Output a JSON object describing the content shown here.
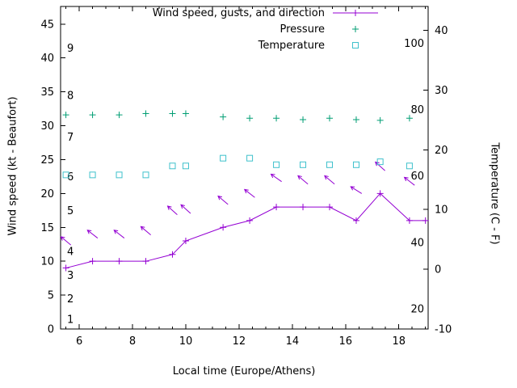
{
  "chart_data": {
    "type": "line",
    "title": "",
    "xlabel": "Local time (Europe/Athens)",
    "ylabel_left": "Wind speed (kt - Beaufort)",
    "ylabel_right": "Temperature (C - F)",
    "x_range": [
      5.3,
      19.1
    ],
    "x_ticks": [
      6,
      8,
      10,
      12,
      14,
      16,
      18
    ],
    "x_minor_step": 0.5,
    "left_axis": {
      "range": [
        0,
        47.6
      ],
      "ticks": [
        0,
        5,
        10,
        15,
        20,
        25,
        30,
        35,
        40,
        45
      ]
    },
    "right_axis": {
      "range": [
        -10,
        44
      ],
      "ticks": [
        -10,
        0,
        10,
        20,
        30,
        40
      ]
    },
    "beaufort_labels": [
      {
        "label": "1",
        "y": 1.4
      },
      {
        "label": "2",
        "y": 4.4
      },
      {
        "label": "3",
        "y": 7.9
      },
      {
        "label": "4",
        "y": 11.4
      },
      {
        "label": "5",
        "y": 17.4
      },
      {
        "label": "6",
        "y": 22.4
      },
      {
        "label": "7",
        "y": 28.3
      },
      {
        "label": "8",
        "y": 34.4
      },
      {
        "label": "9",
        "y": 41.4
      }
    ],
    "fahrenheit_labels": [
      {
        "label": "20",
        "f": 20
      },
      {
        "label": "40",
        "f": 40
      },
      {
        "label": "60",
        "f": 60
      },
      {
        "label": "80",
        "f": 80
      },
      {
        "label": "100",
        "f": 100
      }
    ],
    "legend_position": "top_right",
    "series": [
      {
        "name": "Wind speed, gusts, and direction",
        "axis": "left",
        "style": "linespoints",
        "marker": "plus",
        "color": "#9400d3",
        "x": [
          5.5,
          6.5,
          7.5,
          8.5,
          9.5,
          10.0,
          11.4,
          12.4,
          13.4,
          14.4,
          15.4,
          16.4,
          17.3,
          18.4,
          19.0
        ],
        "values": [
          9,
          10,
          10,
          10,
          11,
          13,
          15,
          16,
          18,
          18,
          18,
          16,
          20,
          16,
          16
        ]
      },
      {
        "name": "Pressure",
        "axis": "left",
        "style": "points",
        "marker": "plus",
        "color": "#009e73",
        "x": [
          5.5,
          6.5,
          7.5,
          8.5,
          9.5,
          10.0,
          11.4,
          12.4,
          13.4,
          14.4,
          15.4,
          16.4,
          17.3,
          18.4
        ],
        "values": [
          31.6,
          31.6,
          31.6,
          31.8,
          31.8,
          31.8,
          31.3,
          31.1,
          31.1,
          30.9,
          31.1,
          30.9,
          30.8,
          31.1
        ]
      },
      {
        "name": "Temperature",
        "axis": "right",
        "style": "points",
        "marker": "square",
        "color": "#3fc1cc",
        "x": [
          5.5,
          6.5,
          7.5,
          8.5,
          9.5,
          10.0,
          11.4,
          12.4,
          13.4,
          14.4,
          15.4,
          16.4,
          17.3,
          18.4
        ],
        "values": [
          15.8,
          15.8,
          15.8,
          15.8,
          17.3,
          17.3,
          18.6,
          18.6,
          17.5,
          17.5,
          17.5,
          17.5,
          18.0,
          17.3
        ]
      },
      {
        "name": "Wind gusts and direction arrows",
        "axis": "left",
        "style": "arrows",
        "color": "#9400d3",
        "x": [
          5.5,
          6.5,
          7.5,
          8.5,
          9.5,
          10.0,
          11.4,
          12.4,
          13.4,
          14.4,
          15.4,
          16.4,
          17.3,
          18.4
        ],
        "values": [
          13,
          14,
          14,
          14.5,
          17.5,
          17.7,
          19,
          20,
          22.3,
          22,
          22,
          20.5,
          24,
          21.8
        ],
        "angles_deg": [
          140,
          142,
          142,
          140,
          138,
          138,
          140,
          142,
          145,
          140,
          140,
          148,
          138,
          142
        ]
      }
    ]
  }
}
